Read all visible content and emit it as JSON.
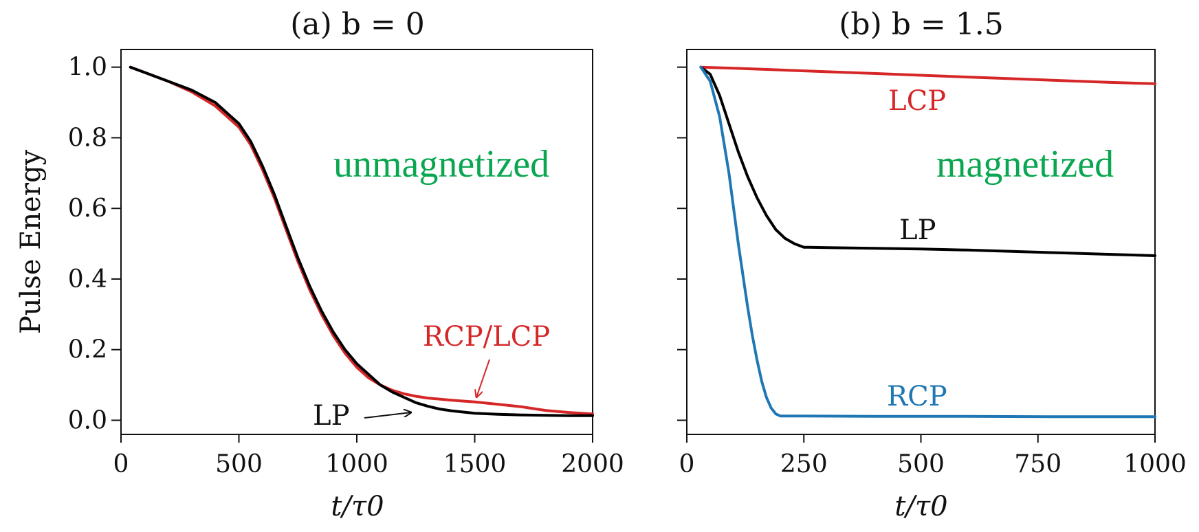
{
  "chart_data": [
    {
      "type": "line",
      "title": "(a) b = 0",
      "xlabel": "t/τ0",
      "ylabel": "Pulse Energy",
      "xlim": [
        0,
        2000
      ],
      "ylim": [
        -0.04,
        1.05
      ],
      "xticks": [
        0,
        500,
        1000,
        1500,
        2000
      ],
      "xtick_labels": [
        "0",
        "500",
        "1000",
        "1500",
        "2000"
      ],
      "yticks": [
        0.0,
        0.2,
        0.4,
        0.6,
        0.8,
        1.0
      ],
      "ytick_labels": [
        "0.0",
        "0.2",
        "0.4",
        "0.6",
        "0.8",
        "1.0"
      ],
      "grid": false,
      "series": [
        {
          "name": "RCP/LCP",
          "color": "#d62728",
          "x": [
            40,
            100,
            200,
            300,
            400,
            500,
            550,
            600,
            650,
            700,
            750,
            800,
            850,
            900,
            950,
            1000,
            1050,
            1100,
            1150,
            1200,
            1250,
            1300,
            1400,
            1500,
            1600,
            1700,
            1800,
            1900,
            2000
          ],
          "y": [
            1.0,
            0.985,
            0.96,
            0.93,
            0.89,
            0.83,
            0.78,
            0.71,
            0.63,
            0.54,
            0.45,
            0.37,
            0.3,
            0.24,
            0.19,
            0.15,
            0.12,
            0.1,
            0.085,
            0.075,
            0.068,
            0.063,
            0.057,
            0.052,
            0.045,
            0.038,
            0.028,
            0.022,
            0.018
          ]
        },
        {
          "name": "LP",
          "color": "#000000",
          "x": [
            40,
            100,
            200,
            300,
            400,
            500,
            550,
            600,
            650,
            700,
            750,
            800,
            850,
            900,
            950,
            1000,
            1050,
            1100,
            1150,
            1200,
            1250,
            1300,
            1350,
            1400,
            1500,
            1600,
            1700,
            1800,
            1900,
            2000
          ],
          "y": [
            1.0,
            0.985,
            0.96,
            0.935,
            0.9,
            0.84,
            0.79,
            0.72,
            0.64,
            0.55,
            0.46,
            0.38,
            0.31,
            0.25,
            0.2,
            0.16,
            0.13,
            0.1,
            0.08,
            0.065,
            0.05,
            0.04,
            0.032,
            0.027,
            0.02,
            0.017,
            0.015,
            0.014,
            0.013,
            0.013
          ]
        }
      ],
      "annotations": [
        {
          "text": "RCP/LCP",
          "color": "#d62728"
        },
        {
          "text": "LP",
          "color": "#000000"
        },
        {
          "text": "unmagnetized",
          "color": "#0aa650"
        }
      ]
    },
    {
      "type": "line",
      "title": "(b) b = 1.5",
      "xlabel": "t/τ0",
      "ylabel": "",
      "xlim": [
        0,
        1000
      ],
      "ylim": [
        -0.04,
        1.05
      ],
      "xticks": [
        0,
        250,
        500,
        750,
        1000
      ],
      "xtick_labels": [
        "0",
        "250",
        "500",
        "750",
        "1000"
      ],
      "yticks": [
        0.0,
        0.2,
        0.4,
        0.6,
        0.8,
        1.0
      ],
      "ytick_labels": [],
      "grid": false,
      "series": [
        {
          "name": "LCP",
          "color": "#d62728",
          "x": [
            30,
            100,
            200,
            300,
            400,
            500,
            600,
            700,
            800,
            900,
            1000
          ],
          "y": [
            1.0,
            0.997,
            0.992,
            0.987,
            0.982,
            0.977,
            0.972,
            0.967,
            0.962,
            0.957,
            0.953
          ]
        },
        {
          "name": "LP",
          "color": "#000000",
          "x": [
            30,
            50,
            70,
            90,
            110,
            130,
            150,
            170,
            190,
            210,
            230,
            250,
            260,
            300,
            400,
            500,
            600,
            700,
            800,
            900,
            1000
          ],
          "y": [
            1.0,
            0.98,
            0.92,
            0.84,
            0.76,
            0.69,
            0.63,
            0.58,
            0.54,
            0.515,
            0.5,
            0.49,
            0.49,
            0.489,
            0.487,
            0.485,
            0.482,
            0.478,
            0.474,
            0.47,
            0.466
          ]
        },
        {
          "name": "RCP",
          "color": "#1f77b4",
          "x": [
            30,
            50,
            70,
            90,
            100,
            110,
            120,
            130,
            140,
            150,
            160,
            170,
            180,
            190,
            200,
            250,
            400,
            600,
            800,
            1000
          ],
          "y": [
            1.0,
            0.96,
            0.86,
            0.7,
            0.6,
            0.5,
            0.41,
            0.32,
            0.24,
            0.17,
            0.11,
            0.065,
            0.035,
            0.018,
            0.012,
            0.012,
            0.011,
            0.011,
            0.01,
            0.01
          ]
        }
      ],
      "annotations": [
        {
          "text": "LCP",
          "color": "#d62728"
        },
        {
          "text": "LP",
          "color": "#000000"
        },
        {
          "text": "RCP",
          "color": "#1f77b4"
        },
        {
          "text": "magnetized",
          "color": "#0aa650"
        }
      ]
    }
  ]
}
